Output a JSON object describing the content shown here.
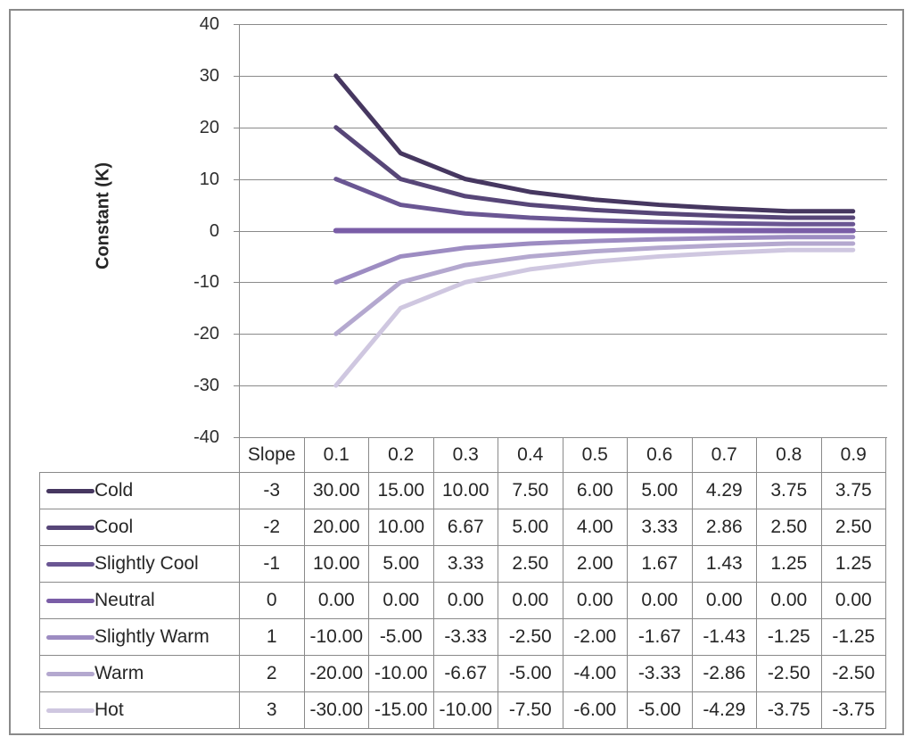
{
  "chart_data": {
    "type": "line",
    "title": "",
    "xlabel": "",
    "ylabel": "Constant (K)",
    "ylim": [
      -40,
      40
    ],
    "y_ticks": [
      40,
      30,
      20,
      10,
      0,
      -10,
      -20,
      -30,
      -40
    ],
    "y_tick_labels": [
      "40",
      "30",
      "20",
      "10",
      "0",
      "-10",
      "-20",
      "-30",
      "-40"
    ],
    "x": [
      0.1,
      0.2,
      0.3,
      0.4,
      0.5,
      0.6,
      0.7,
      0.8,
      0.9
    ],
    "x_labels": [
      "0.1",
      "0.2",
      "0.3",
      "0.4",
      "0.5",
      "0.6",
      "0.7",
      "0.8",
      "0.9"
    ],
    "grid": true,
    "grid_color": "#8a8a8a",
    "legend_position": "table-left-column",
    "slope_header": "Slope",
    "series": [
      {
        "name": "Cold",
        "slope": "-3",
        "color": "#463760",
        "values": [
          30,
          15,
          10,
          7.5,
          6,
          5,
          4.29,
          3.75,
          3.75
        ],
        "formatted": [
          "30.00",
          "15.00",
          "10.00",
          "7.50",
          "6.00",
          "5.00",
          "4.29",
          "3.75",
          "3.75"
        ]
      },
      {
        "name": "Cool",
        "slope": "-2",
        "color": "#574678",
        "values": [
          20,
          10,
          6.67,
          5,
          4,
          3.33,
          2.86,
          2.5,
          2.5
        ],
        "formatted": [
          "20.00",
          "10.00",
          "6.67",
          "5.00",
          "4.00",
          "3.33",
          "2.86",
          "2.50",
          "2.50"
        ]
      },
      {
        "name": "Slightly Cool",
        "slope": "-1",
        "color": "#6a5693",
        "values": [
          10,
          5,
          3.33,
          2.5,
          2,
          1.67,
          1.43,
          1.25,
          1.25
        ],
        "formatted": [
          "10.00",
          "5.00",
          "3.33",
          "2.50",
          "2.00",
          "1.67",
          "1.43",
          "1.25",
          "1.25"
        ]
      },
      {
        "name": "Neutral",
        "slope": "0",
        "color": "#7a5da7",
        "values": [
          0,
          0,
          0,
          0,
          0,
          0,
          0,
          0,
          0
        ],
        "formatted": [
          "0.00",
          "0.00",
          "0.00",
          "0.00",
          "0.00",
          "0.00",
          "0.00",
          "0.00",
          "0.00"
        ]
      },
      {
        "name": "Slightly Warm",
        "slope": "1",
        "color": "#9d8cc2",
        "values": [
          -10,
          -5,
          -3.33,
          -2.5,
          -2,
          -1.67,
          -1.43,
          -1.25,
          -1.25
        ],
        "formatted": [
          "-10.00",
          "-5.00",
          "-3.33",
          "-2.50",
          "-2.00",
          "-1.67",
          "-1.43",
          "-1.25",
          "-1.25"
        ]
      },
      {
        "name": "Warm",
        "slope": "2",
        "color": "#b4a8cf",
        "values": [
          -20,
          -10,
          -6.67,
          -5,
          -4,
          -3.33,
          -2.86,
          -2.5,
          -2.5
        ],
        "formatted": [
          "-20.00",
          "-10.00",
          "-6.67",
          "-5.00",
          "-4.00",
          "-3.33",
          "-2.86",
          "-2.50",
          "-2.50"
        ]
      },
      {
        "name": "Hot",
        "slope": "3",
        "color": "#cfc7e0",
        "values": [
          -30,
          -15,
          -10,
          -7.5,
          -6,
          -5,
          -4.29,
          -3.75,
          -3.75
        ],
        "formatted": [
          "-30.00",
          "-15.00",
          "-10.00",
          "-7.50",
          "-6.00",
          "-5.00",
          "-4.29",
          "-3.75",
          "-3.75"
        ]
      }
    ]
  }
}
